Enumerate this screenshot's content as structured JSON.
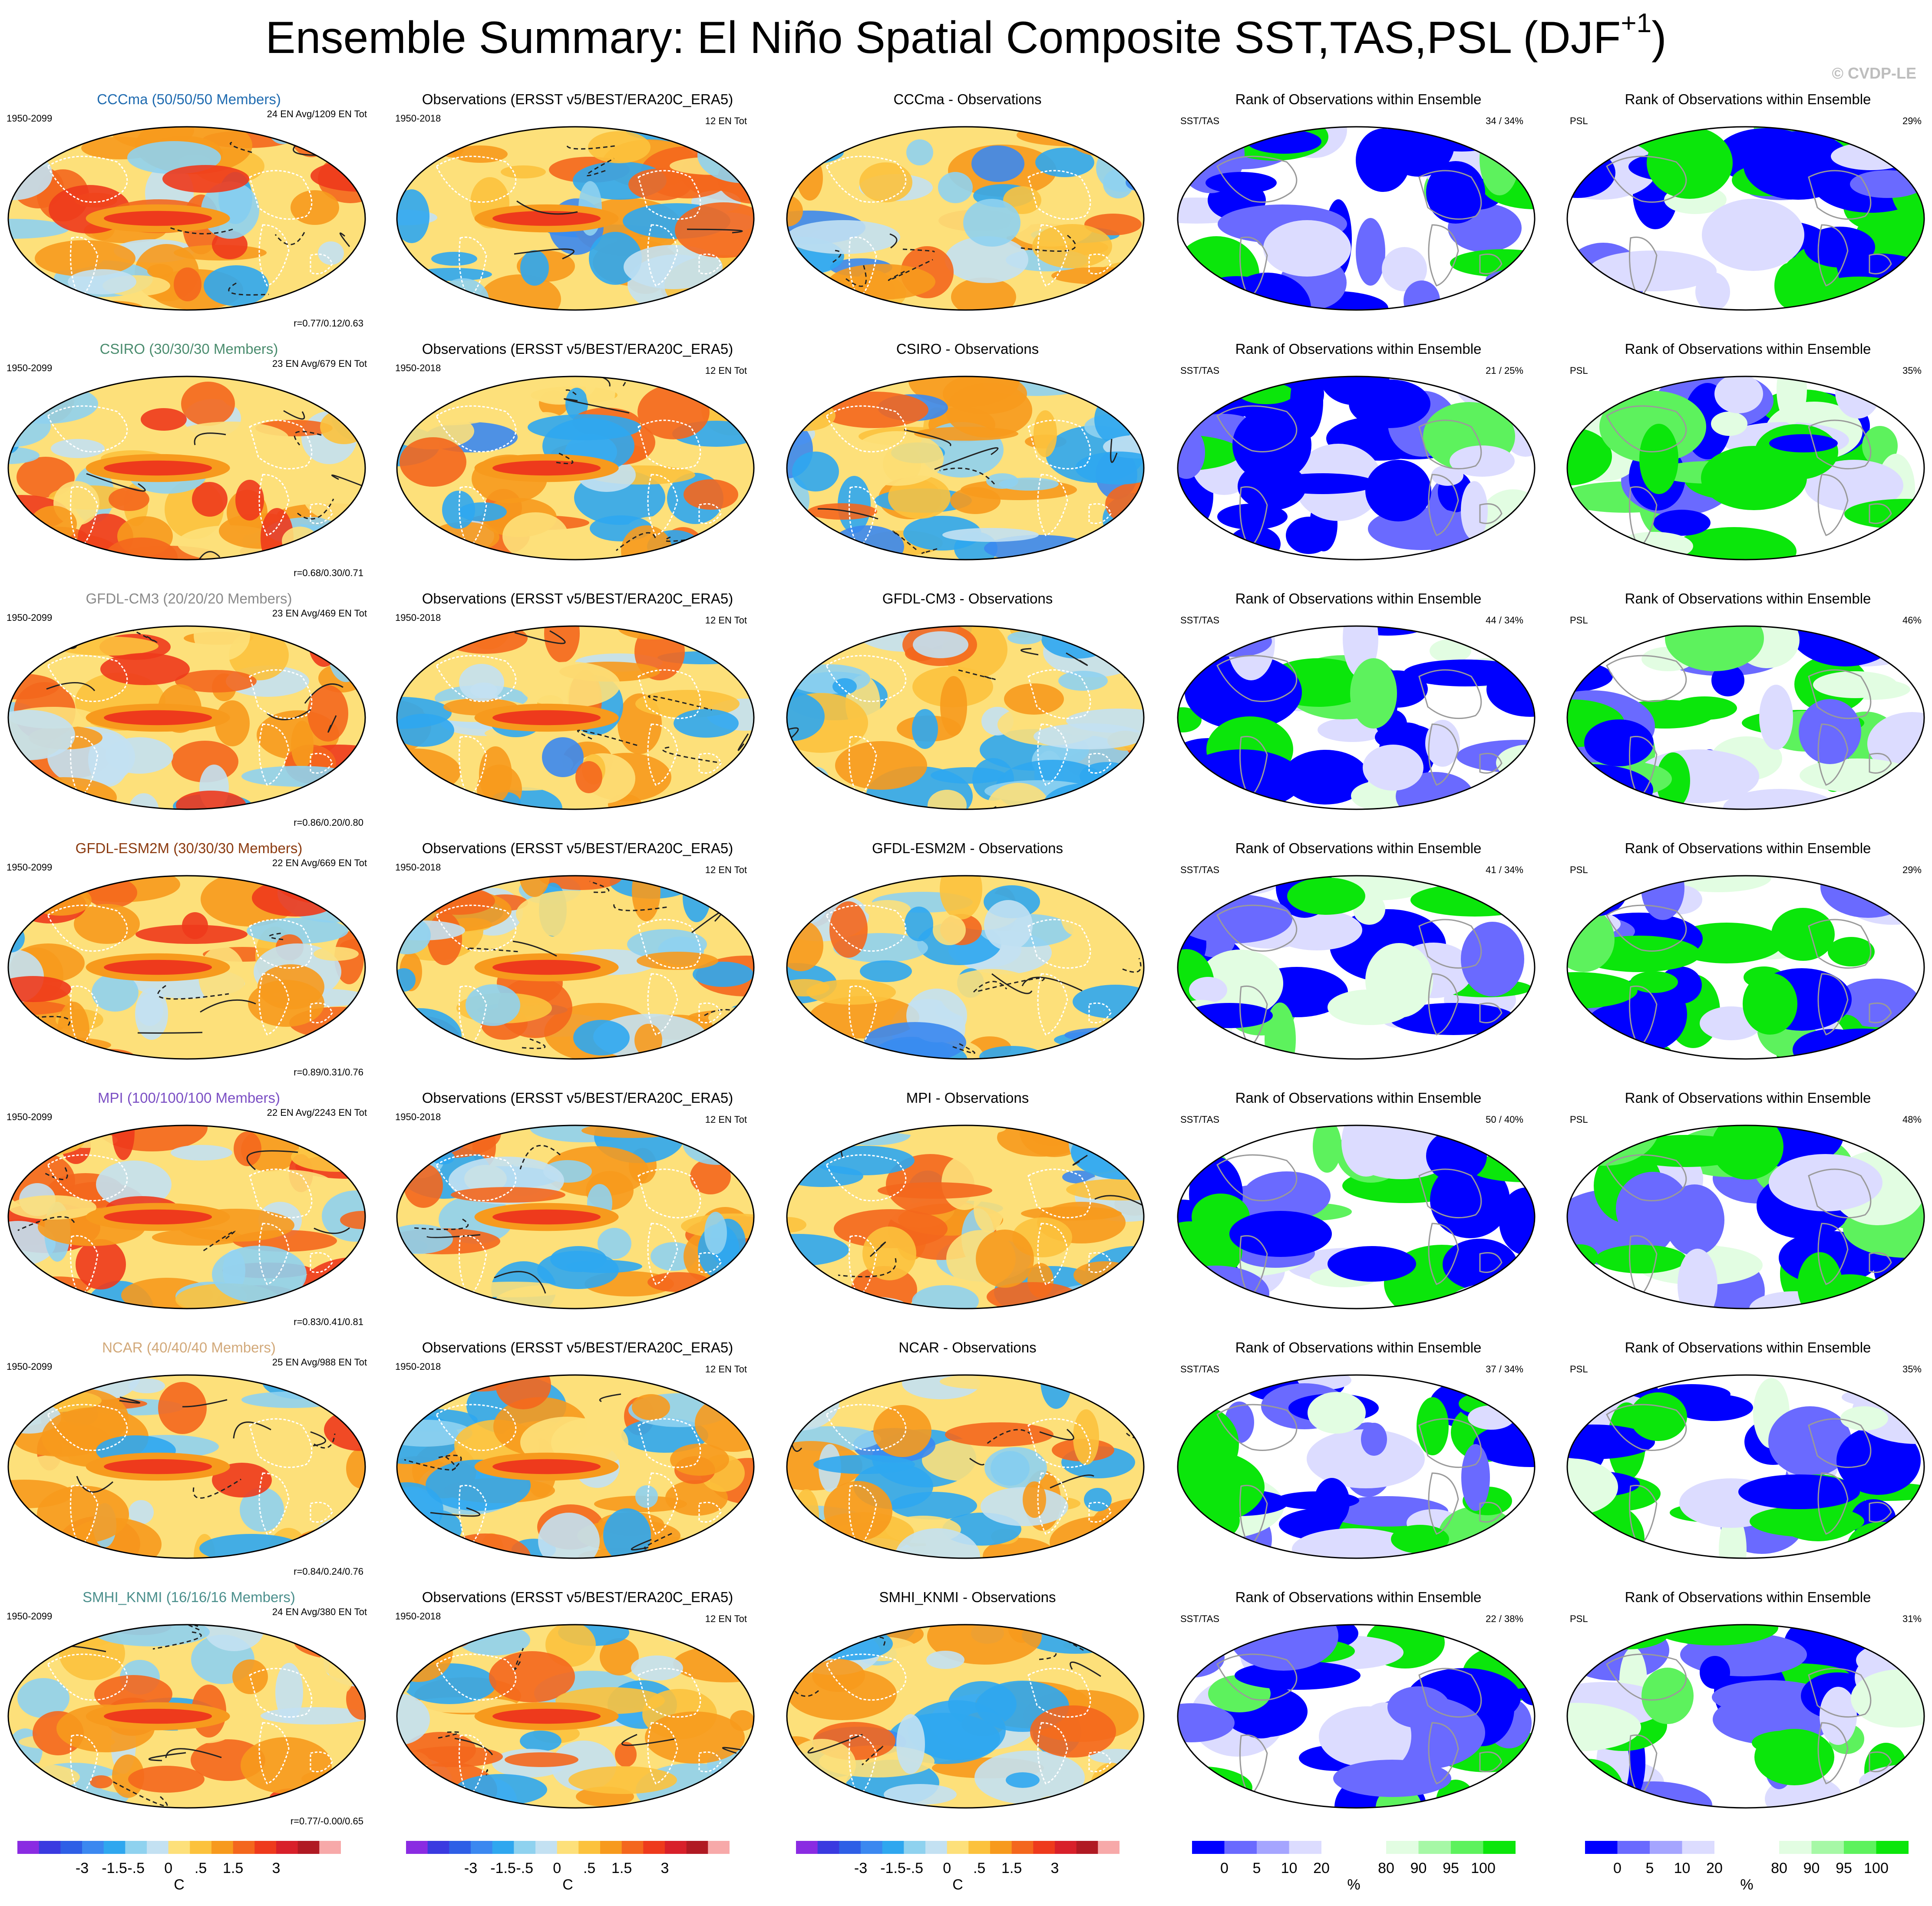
{
  "title": "Ensemble Summary: El Niño Spatial Composite SST,TAS,PSL (DJF",
  "title_superscript": "+1",
  "title_close": ")",
  "watermark": "© CVDP-LE",
  "obs_title": "Observations (ERSST v5/BEST/ERA20C_ERA5)",
  "obs_years": "1950-2018",
  "obs_count": "12 EN Tot",
  "model_years": "1950-2099",
  "rank_title": "Rank of Observations within Ensemble",
  "rank_label_sst": "SST/TAS",
  "rank_label_psl": "PSL",
  "rows": [
    {
      "model": "CCCma",
      "label": "CCCma (50/50/50 Members)",
      "label_color": "#1f6bb0",
      "count": "24 EN Avg/1209 EN Tot",
      "r": "r=0.77/0.12/0.63",
      "diff_title": "CCCma - Observations",
      "sst_pct": "34 /  34%",
      "psl_pct": "29%",
      "sst_rank": 0.3,
      "psl_rank": 0.5
    },
    {
      "model": "CSIRO",
      "label": "CSIRO (30/30/30 Members)",
      "label_color": "#4a8c6e",
      "count": "23 EN Avg/679 EN Tot",
      "r": "r=0.68/0.30/0.71",
      "diff_title": "CSIRO - Observations",
      "sst_pct": "21 /  25%",
      "psl_pct": "35%",
      "sst_rank": 0.1,
      "psl_rank": 0.6
    },
    {
      "model": "GFDL-CM3",
      "label": "GFDL-CM3 (20/20/20 Members)",
      "label_color": "#8a8a8a",
      "count": "23 EN Avg/469 EN Tot",
      "r": "r=0.86/0.20/0.80",
      "diff_title": "GFDL-CM3 - Observations",
      "sst_pct": "44 /  34%",
      "psl_pct": "46%",
      "sst_rank": 0.35,
      "psl_rank": 0.5
    },
    {
      "model": "GFDL-ESM2M",
      "label": "GFDL-ESM2M (30/30/30 Members)",
      "label_color": "#8b3a0f",
      "count": "22 EN Avg/669 EN Tot",
      "r": "r=0.89/0.31/0.76",
      "diff_title": "GFDL-ESM2M - Observations",
      "sst_pct": "41 /  34%",
      "psl_pct": "29%",
      "sst_rank": 0.4,
      "psl_rank": 0.55
    },
    {
      "model": "MPI",
      "label": "MPI (100/100/100 Members)",
      "label_color": "#7b4fc4",
      "count": "22 EN Avg/2243 EN Tot",
      "r": "r=0.83/0.41/0.81",
      "diff_title": "MPI - Observations",
      "sst_pct": "50 /  40%",
      "psl_pct": "48%",
      "sst_rank": 0.35,
      "psl_rank": 0.45
    },
    {
      "model": "NCAR",
      "label": "NCAR (40/40/40 Members)",
      "label_color": "#d2a97a",
      "count": "25 EN Avg/988 EN Tot",
      "r": "r=0.84/0.24/0.76",
      "diff_title": "NCAR - Observations",
      "sst_pct": "37 /  34%",
      "psl_pct": "35%",
      "sst_rank": 0.35,
      "psl_rank": 0.55
    },
    {
      "model": "SMHI_KNMI",
      "label": "SMHI_KNMI (16/16/16 Members)",
      "label_color": "#4b8f8c",
      "count": "24 EN Avg/380 EN Tot",
      "r": "r=0.77/-0.00/0.65",
      "diff_title": "SMHI_KNMI - Observations",
      "sst_pct": "22 /  38%",
      "psl_pct": "31%",
      "sst_rank": 0.2,
      "psl_rank": 0.5
    }
  ],
  "temp_colorbar": {
    "colors": [
      "#8a2be2",
      "#3a3ae0",
      "#2e5fe6",
      "#3b88f0",
      "#2fa7ef",
      "#8fd2ef",
      "#c3e1f2",
      "#fde07a",
      "#fcc23d",
      "#f79a1d",
      "#f4671d",
      "#ee3a1c",
      "#d8202a",
      "#b01a23",
      "#f7a9a9"
    ],
    "tick_labels": [
      "-3",
      "-1.5",
      "-.5",
      "0",
      ".5",
      "1.5",
      "3"
    ],
    "unit": "C"
  },
  "rank_colorbar": {
    "colors": [
      "#0000ff",
      "#6a6aff",
      "#a5a5ff",
      "#dcdcff",
      "#ffffff",
      "#ffffff",
      "#e2fde2",
      "#a6f8a6",
      "#5df25d",
      "#0be60b"
    ],
    "tick_labels": [
      "0",
      "5",
      "10",
      "20",
      "80",
      "90",
      "95",
      "100"
    ],
    "unit": "%"
  }
}
